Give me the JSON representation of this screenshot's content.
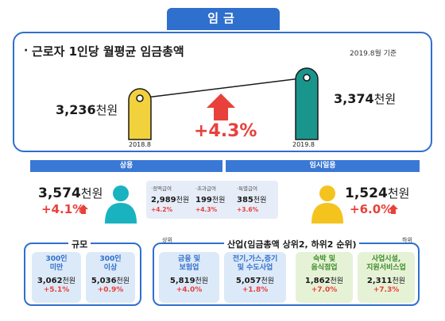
{
  "tab_title": "임금",
  "header": {
    "bullet": "·",
    "title": "근로자 1인당 월평균 임금총액",
    "note": "2019.8월 기준"
  },
  "comparison": {
    "left_value": "3,236",
    "right_value": "3,374",
    "unit": "천원",
    "left_date": "2018.8",
    "right_date": "2019.8",
    "change": "+4.3%",
    "colors": {
      "left_bar": "#f2d23c",
      "right_bar": "#19958c",
      "arrow": "#e8413c"
    }
  },
  "bands": {
    "regular": "상용",
    "temporary": "임시일용"
  },
  "regular": {
    "value": "3,574",
    "unit": "천원",
    "change": "+4.1%",
    "breakdown": [
      {
        "label": "·정액급여",
        "value": "2,989",
        "unit": "천원",
        "change": "+4.2%"
      },
      {
        "label": "·초과급여",
        "value": "199",
        "unit": "천원",
        "change": "+4.3%"
      },
      {
        "label": "·특별급여",
        "value": "385",
        "unit": "천원",
        "change": "+3.6%"
      }
    ]
  },
  "temporary": {
    "value": "1,524",
    "unit": "천원",
    "change": "+6.0%"
  },
  "scale": {
    "label": "규모",
    "cards": [
      {
        "title1": "300인",
        "title2": "미만",
        "value": "3,062",
        "unit": "천원",
        "change": "+5.1%"
      },
      {
        "title1": "300인",
        "title2": "이상",
        "value": "5,036",
        "unit": "천원",
        "change": "+0.9%"
      }
    ]
  },
  "industry": {
    "label": "산업(임금총액 상위2, 하위2 순위)",
    "top_label": "상위",
    "bottom_label": "하위",
    "cards": [
      {
        "title1": "금융 및",
        "title2": "보험업",
        "value": "5,819",
        "unit": "천원",
        "change": "+4.0%",
        "tone": "blue"
      },
      {
        "title1": "전기,가스,증기",
        "title2": "및 수도사업",
        "value": "5,057",
        "unit": "천원",
        "change": "+1.8%",
        "tone": "blue"
      },
      {
        "title1": "숙박 및",
        "title2": "음식점업",
        "value": "1,862",
        "unit": "천원",
        "change": "+7.0%",
        "tone": "green"
      },
      {
        "title1": "사업시설,",
        "title2": "지원서비스업",
        "value": "2,311",
        "unit": "천원",
        "change": "+7.3%",
        "tone": "green"
      }
    ]
  }
}
